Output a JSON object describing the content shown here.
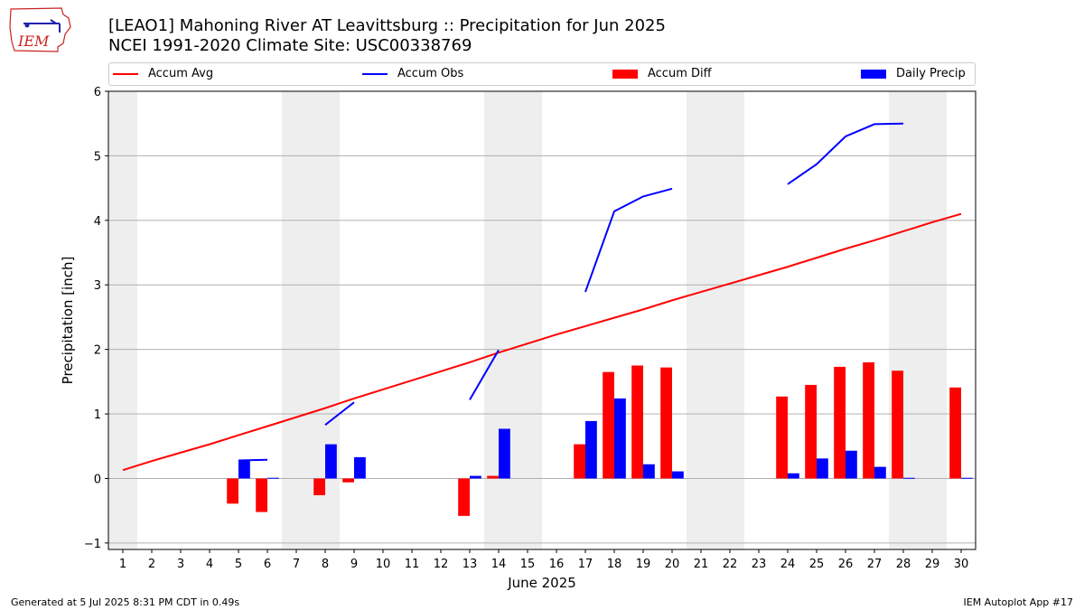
{
  "logo": {
    "text": "IEM"
  },
  "title": {
    "line1": "[LEAO1] Mahoning River  AT Leavittsburg :: Precipitation for Jun 2025",
    "line2": "NCEI 1991-2020 Climate Site: USC00338769"
  },
  "legend": [
    {
      "label": "Accum Avg",
      "kind": "line",
      "color": "#ff0000"
    },
    {
      "label": "Accum Obs",
      "kind": "line",
      "color": "#0000ff"
    },
    {
      "label": "Accum Diff",
      "kind": "bar",
      "color": "#ff0000"
    },
    {
      "label": "Daily Precip",
      "kind": "bar",
      "color": "#0000ff"
    }
  ],
  "footer": {
    "left": "Generated at 5 Jul 2025 8:31 PM CDT in 0.49s",
    "right": "IEM Autoplot App #17"
  },
  "chart_data": {
    "type": "bar",
    "xlabel": "June 2025",
    "ylabel": "Precipitation [inch]",
    "xlim": [
      0.5,
      30.5
    ],
    "ylim": [
      -1.1,
      6.0
    ],
    "x_ticks": [
      1,
      2,
      3,
      4,
      5,
      6,
      7,
      8,
      9,
      10,
      11,
      12,
      13,
      14,
      15,
      16,
      17,
      18,
      19,
      20,
      21,
      22,
      23,
      24,
      25,
      26,
      27,
      28,
      29,
      30
    ],
    "y_ticks": [
      -1,
      0,
      1,
      2,
      3,
      4,
      5,
      6
    ],
    "grid": "horizontal",
    "legend_position": "top",
    "weekend_shading": [
      [
        0.5,
        1.5
      ],
      [
        6.5,
        8.5
      ],
      [
        13.5,
        15.5
      ],
      [
        20.5,
        22.5
      ],
      [
        27.5,
        29.5
      ]
    ],
    "series": [
      {
        "name": "Accum Avg",
        "kind": "line",
        "color": "#ff0000",
        "x": [
          1,
          2,
          3,
          4,
          5,
          6,
          7,
          8,
          9,
          10,
          11,
          12,
          13,
          14,
          15,
          16,
          17,
          18,
          19,
          20,
          21,
          22,
          23,
          24,
          25,
          26,
          27,
          28,
          29,
          30
        ],
        "y": [
          0.13,
          0.27,
          0.4,
          0.53,
          0.67,
          0.81,
          0.95,
          1.09,
          1.24,
          1.38,
          1.52,
          1.66,
          1.8,
          1.95,
          2.09,
          2.23,
          2.36,
          2.49,
          2.62,
          2.76,
          2.89,
          3.02,
          3.15,
          3.28,
          3.42,
          3.56,
          3.69,
          3.83,
          3.97,
          4.1
        ]
      },
      {
        "name": "Accum Obs",
        "kind": "line",
        "color": "#0000ff",
        "segments": [
          {
            "x": [
              5,
              6
            ],
            "y": [
              0.28,
              0.29
            ]
          },
          {
            "x": [
              8,
              9
            ],
            "y": [
              0.83,
              1.18
            ]
          },
          {
            "x": [
              13,
              14
            ],
            "y": [
              1.22,
              1.99
            ]
          },
          {
            "x": [
              17,
              18,
              19,
              20
            ],
            "y": [
              2.89,
              4.14,
              4.37,
              4.49
            ]
          },
          {
            "x": [
              24,
              25,
              26,
              27,
              28
            ],
            "y": [
              4.56,
              4.87,
              5.3,
              5.49,
              5.5
            ]
          }
        ]
      },
      {
        "name": "Accum Diff",
        "kind": "bar",
        "color": "#ff0000",
        "offset": -0.2,
        "x": [
          5,
          6,
          8,
          9,
          13,
          14,
          17,
          18,
          19,
          20,
          24,
          25,
          26,
          27,
          28,
          30
        ],
        "y": [
          -0.39,
          -0.52,
          -0.26,
          -0.06,
          -0.58,
          0.04,
          0.53,
          1.65,
          1.75,
          1.72,
          1.27,
          1.45,
          1.73,
          1.8,
          1.67,
          1.41
        ]
      },
      {
        "name": "Daily Precip",
        "kind": "bar",
        "color": "#0000ff",
        "offset": 0.2,
        "x": [
          5,
          6,
          8,
          9,
          13,
          14,
          17,
          18,
          19,
          20,
          24,
          25,
          26,
          27,
          28,
          30
        ],
        "y": [
          0.28,
          0.01,
          0.53,
          0.33,
          0.04,
          0.77,
          0.89,
          1.24,
          0.22,
          0.11,
          0.08,
          0.31,
          0.43,
          0.18,
          0.01,
          0.01
        ]
      }
    ]
  }
}
